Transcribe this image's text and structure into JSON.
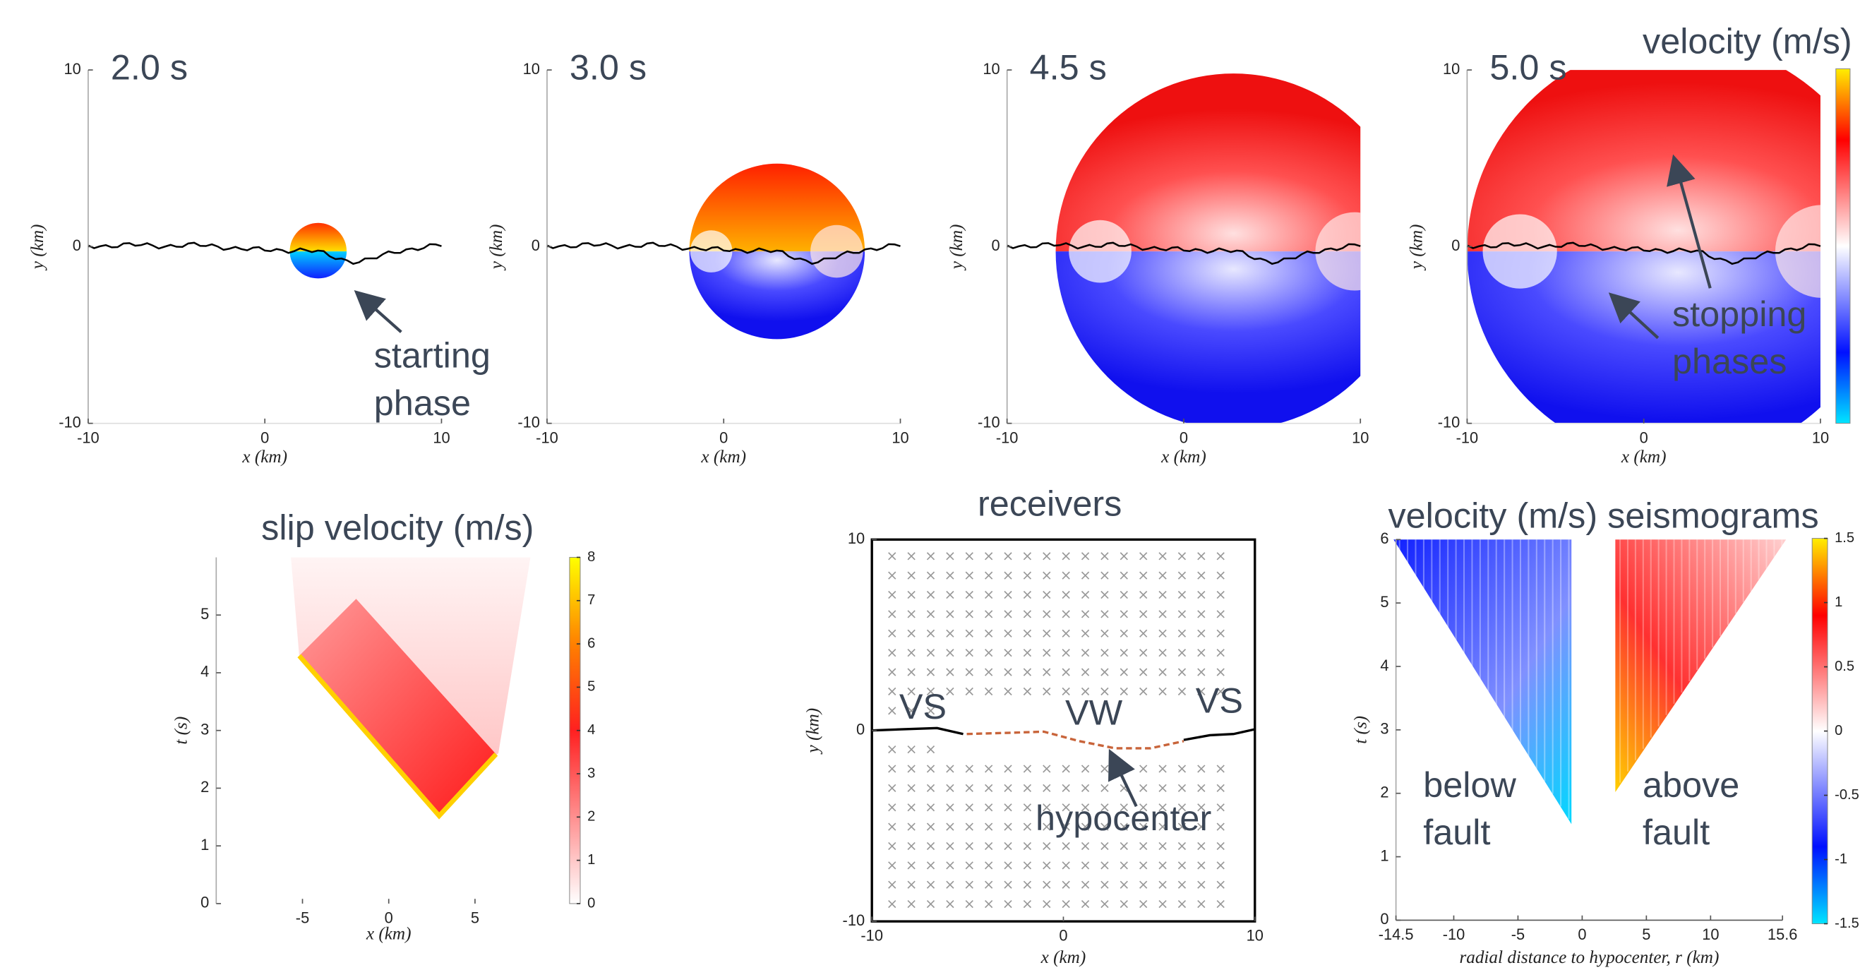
{
  "chart_data": [
    {
      "type": "heatmap",
      "time_label": "2.0 s",
      "xlabel": "x (km)",
      "ylabel": "y (km)",
      "xlim": [
        -10,
        10
      ],
      "ylim": [
        -10,
        10
      ],
      "xticks": [
        -10,
        0,
        10
      ],
      "yticks": [
        -10,
        0,
        10
      ],
      "annotations": [
        {
          "text": [
            "starting",
            "phase"
          ]
        }
      ]
    },
    {
      "type": "heatmap",
      "time_label": "3.0 s",
      "xlabel": "x (km)",
      "ylabel": "y (km)",
      "xlim": [
        -10,
        10
      ],
      "ylim": [
        -10,
        10
      ],
      "xticks": [
        -10,
        0,
        10
      ],
      "yticks": [
        -10,
        0,
        10
      ]
    },
    {
      "type": "heatmap",
      "time_label": "4.5 s",
      "xlabel": "x (km)",
      "ylabel": "y (km)",
      "xlim": [
        -10,
        10
      ],
      "ylim": [
        -10,
        10
      ],
      "xticks": [
        -10,
        0,
        10
      ],
      "yticks": [
        -10,
        0,
        10
      ]
    },
    {
      "type": "heatmap",
      "time_label": "5.0 s",
      "xlabel": "x (km)",
      "ylabel": "y (km)",
      "xlim": [
        -10,
        10
      ],
      "ylim": [
        -10,
        10
      ],
      "xticks": [
        -10,
        0,
        10
      ],
      "yticks": [
        -10,
        0,
        10
      ],
      "colorbar": {
        "label": "velocity (m/s)"
      },
      "annotations": [
        {
          "text": [
            "stopping",
            "phases"
          ]
        }
      ]
    },
    {
      "type": "heatmap",
      "title": "slip velocity (m/s)",
      "xlabel": "x (km)",
      "ylabel": "t (s)",
      "xlim": [
        -10,
        10
      ],
      "ylim": [
        0,
        6
      ],
      "xticks": [
        -5,
        0,
        5
      ],
      "yticks": [
        0,
        1,
        2,
        3,
        4,
        5
      ],
      "colorbar": {
        "lim": [
          0,
          8
        ],
        "ticks": [
          0,
          1,
          2,
          3,
          4,
          5,
          6,
          7,
          8
        ]
      }
    },
    {
      "type": "map",
      "title": "receivers",
      "xlabel": "x (km)",
      "ylabel": "y (km)",
      "xlim": [
        -10,
        10
      ],
      "ylim": [
        -10,
        10
      ],
      "xticks": [
        -10,
        0,
        10
      ],
      "yticks": [
        -10,
        0,
        10
      ],
      "annotations": [
        {
          "text": [
            "VS"
          ]
        },
        {
          "text": [
            "VW"
          ]
        },
        {
          "text": [
            "VS"
          ]
        },
        {
          "text": [
            "hypocenter"
          ]
        }
      ]
    },
    {
      "type": "heatmap",
      "title": "velocity (m/s) seismograms",
      "xlabel": "radial distance to hypocenter, r (km)",
      "ylabel": "t (s)",
      "xlim": [
        -14.5,
        15.6
      ],
      "ylim": [
        0,
        6
      ],
      "xticks": [
        -14.5,
        -10,
        -5,
        0,
        5,
        10,
        15.6
      ],
      "yticks": [
        0,
        1,
        2,
        3,
        4,
        5,
        6
      ],
      "colorbar": {
        "lim": [
          -1.5,
          1.5
        ],
        "ticks": [
          -1.5,
          -1,
          -0.5,
          0,
          0.5,
          1,
          1.5
        ]
      },
      "annotations": [
        {
          "text": [
            "below",
            "fault"
          ]
        },
        {
          "text": [
            "above",
            "fault"
          ]
        }
      ]
    }
  ]
}
